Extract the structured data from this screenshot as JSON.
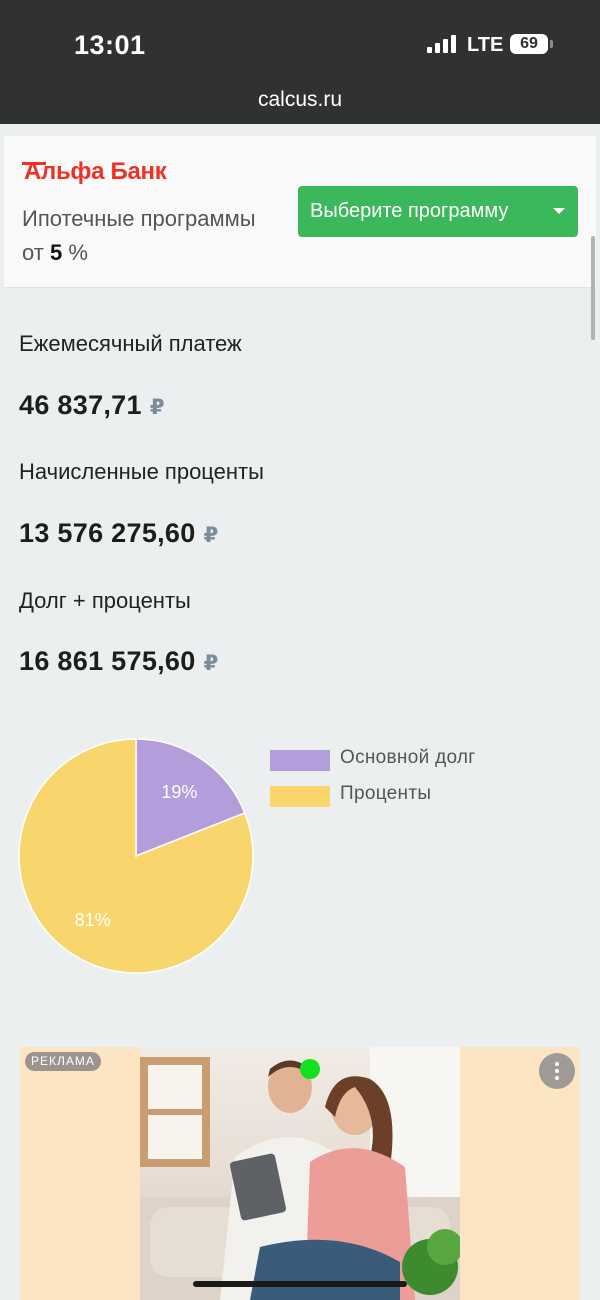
{
  "status": {
    "time": "13:01",
    "network": "LTE",
    "battery": "69"
  },
  "browser": {
    "url": "calcus.ru"
  },
  "banner": {
    "logo": "Альфа Банк",
    "promo_prefix": "Ипотечные программы от ",
    "promo_rate": "5",
    "promo_suffix": " %",
    "button_label": "Выберите программу"
  },
  "results": [
    {
      "label": "Ежемесячный платеж",
      "value": "46 837,71",
      "currency": "₽"
    },
    {
      "label": "Начисленные проценты",
      "value": "13 576 275,60",
      "currency": "₽"
    },
    {
      "label": "Долг + проценты",
      "value": "16 861 575,60",
      "currency": "₽"
    }
  ],
  "chart_data": {
    "type": "pie",
    "slices": [
      {
        "name": "Основной долг",
        "value": 19,
        "label": "19%",
        "color": "#b39ddb"
      },
      {
        "name": "Проценты",
        "value": 81,
        "label": "81%",
        "color": "#f9d56e"
      }
    ],
    "legend": "right"
  },
  "ad": {
    "badge": "РЕКЛАМА"
  },
  "colors": {
    "accent_green": "#3cb85c",
    "bank_red": "#ef3124"
  }
}
